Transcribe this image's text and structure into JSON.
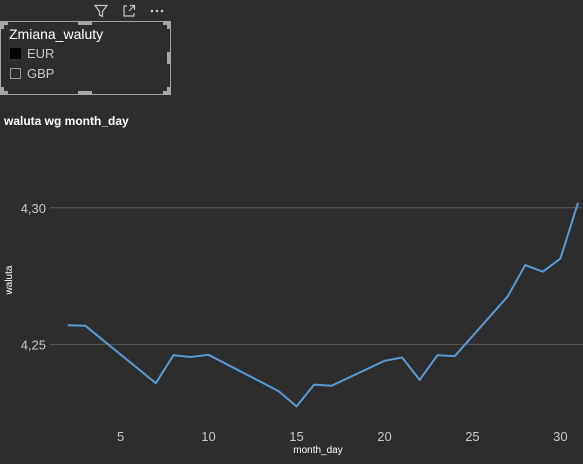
{
  "toolbar": {
    "icons": [
      "filter-icon",
      "focus-mode-icon",
      "more-options-icon"
    ]
  },
  "slicer": {
    "title": "Zmiana_waluty",
    "items": [
      {
        "label": "EUR",
        "checked": true
      },
      {
        "label": "GBP",
        "checked": false
      }
    ]
  },
  "chart_title": "waluta wg month_day",
  "chart_data": {
    "type": "line",
    "title": "waluta wg month_day",
    "xlabel": "month_day",
    "ylabel": "waluta",
    "xlim": [
      1.5,
      31
    ],
    "ylim": [
      4.2205,
      4.3248
    ],
    "x_ticks": [
      "5",
      "10",
      "15",
      "20",
      "25",
      "30"
    ],
    "y_ticks": [
      "4,25",
      "4,30"
    ],
    "grid": true,
    "line_color": "#5b9bd5",
    "series": [
      {
        "x": [
          2,
          3,
          7,
          8,
          9,
          10,
          13,
          14,
          15,
          16,
          17,
          20,
          21,
          22,
          23,
          24,
          27,
          28,
          29,
          30,
          31
        ],
        "values": [
          4.257,
          4.2568,
          4.2358,
          4.246,
          4.2454,
          4.2462,
          4.2362,
          4.2328,
          4.2273,
          4.2353,
          4.2349,
          4.244,
          4.2452,
          4.237,
          4.246,
          4.2457,
          4.2675,
          4.279,
          4.2766,
          4.2814,
          4.3018
        ]
      }
    ]
  }
}
